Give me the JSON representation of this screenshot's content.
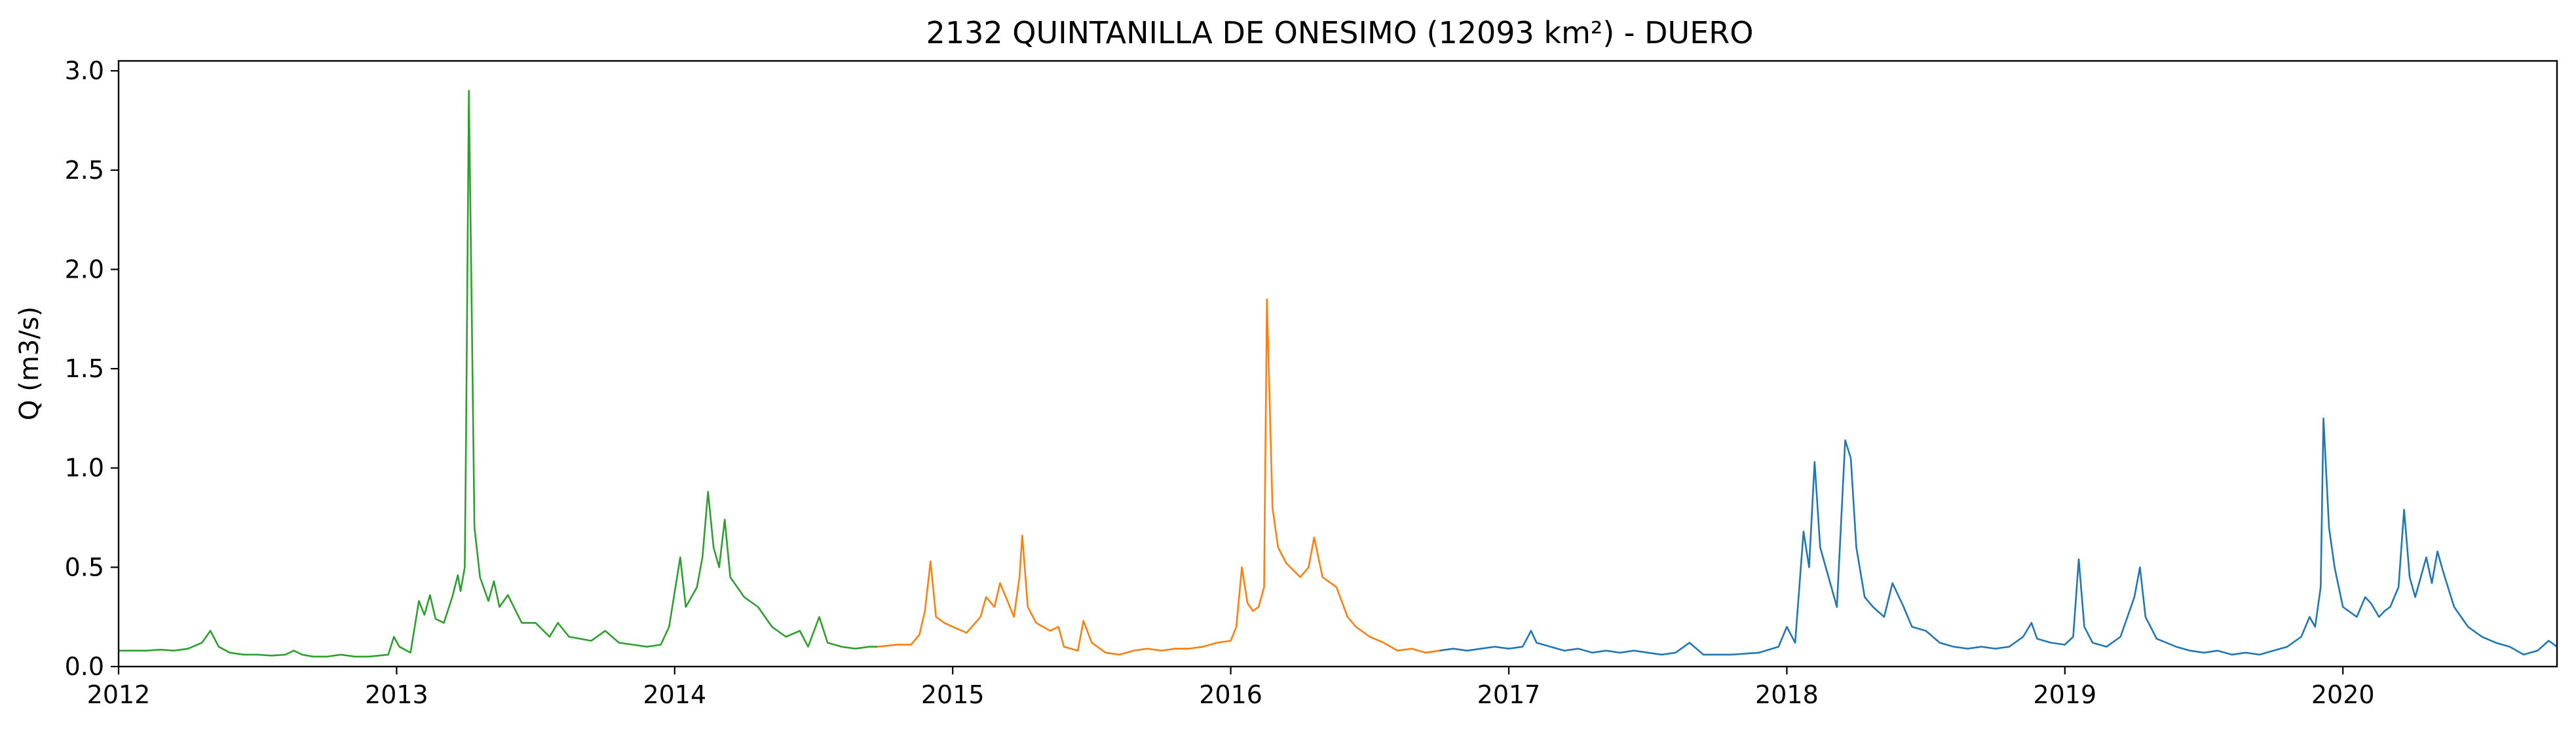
{
  "chart_data": {
    "type": "line",
    "title": "2132 QUINTANILLA DE ONESIMO (12093 km²) - DUERO",
    "xlabel": "",
    "ylabel": "Q (m3/s)",
    "xlim": [
      2012.0,
      2020.77
    ],
    "ylim": [
      0.0,
      3.05
    ],
    "x_ticks": [
      2012,
      2013,
      2014,
      2015,
      2016,
      2017,
      2018,
      2019,
      2020
    ],
    "x_tick_labels": [
      "2012",
      "2013",
      "2014",
      "2015",
      "2016",
      "2017",
      "2018",
      "2019",
      "2020"
    ],
    "y_ticks": [
      0.0,
      0.5,
      1.0,
      1.5,
      2.0,
      2.5,
      3.0
    ],
    "y_tick_labels": [
      "0.0",
      "0.5",
      "1.0",
      "1.5",
      "2.0",
      "2.5",
      "3.0"
    ],
    "grid": false,
    "legend": "none",
    "series": [
      {
        "color": "#2ca02c",
        "points": [
          [
            2012.0,
            0.08
          ],
          [
            2012.05,
            0.08
          ],
          [
            2012.1,
            0.08
          ],
          [
            2012.15,
            0.085
          ],
          [
            2012.2,
            0.08
          ],
          [
            2012.25,
            0.09
          ],
          [
            2012.3,
            0.12
          ],
          [
            2012.33,
            0.18
          ],
          [
            2012.36,
            0.1
          ],
          [
            2012.4,
            0.07
          ],
          [
            2012.45,
            0.06
          ],
          [
            2012.5,
            0.06
          ],
          [
            2012.55,
            0.055
          ],
          [
            2012.6,
            0.06
          ],
          [
            2012.63,
            0.08
          ],
          [
            2012.66,
            0.06
          ],
          [
            2012.7,
            0.05
          ],
          [
            2012.75,
            0.05
          ],
          [
            2012.8,
            0.06
          ],
          [
            2012.85,
            0.05
          ],
          [
            2012.9,
            0.05
          ],
          [
            2012.97,
            0.06
          ],
          [
            2012.99,
            0.15
          ],
          [
            2013.01,
            0.1
          ],
          [
            2013.05,
            0.07
          ],
          [
            2013.08,
            0.33
          ],
          [
            2013.1,
            0.26
          ],
          [
            2013.12,
            0.36
          ],
          [
            2013.14,
            0.24
          ],
          [
            2013.17,
            0.22
          ],
          [
            2013.2,
            0.35
          ],
          [
            2013.22,
            0.46
          ],
          [
            2013.23,
            0.38
          ],
          [
            2013.245,
            0.5
          ],
          [
            2013.25,
            1.2
          ],
          [
            2013.26,
            2.9
          ],
          [
            2013.27,
            1.8
          ],
          [
            2013.28,
            0.7
          ],
          [
            2013.3,
            0.45
          ],
          [
            2013.33,
            0.33
          ],
          [
            2013.35,
            0.43
          ],
          [
            2013.37,
            0.3
          ],
          [
            2013.4,
            0.36
          ],
          [
            2013.45,
            0.22
          ],
          [
            2013.5,
            0.22
          ],
          [
            2013.55,
            0.15
          ],
          [
            2013.58,
            0.22
          ],
          [
            2013.62,
            0.15
          ],
          [
            2013.7,
            0.13
          ],
          [
            2013.75,
            0.18
          ],
          [
            2013.8,
            0.12
          ],
          [
            2013.85,
            0.11
          ],
          [
            2013.9,
            0.1
          ],
          [
            2013.95,
            0.11
          ],
          [
            2013.98,
            0.2
          ],
          [
            2014.02,
            0.55
          ],
          [
            2014.04,
            0.3
          ],
          [
            2014.06,
            0.35
          ],
          [
            2014.08,
            0.4
          ],
          [
            2014.1,
            0.55
          ],
          [
            2014.12,
            0.88
          ],
          [
            2014.14,
            0.6
          ],
          [
            2014.16,
            0.5
          ],
          [
            2014.18,
            0.74
          ],
          [
            2014.2,
            0.45
          ],
          [
            2014.25,
            0.35
          ],
          [
            2014.3,
            0.3
          ],
          [
            2014.35,
            0.2
          ],
          [
            2014.4,
            0.15
          ],
          [
            2014.45,
            0.18
          ],
          [
            2014.48,
            0.1
          ],
          [
            2014.52,
            0.25
          ],
          [
            2014.55,
            0.12
          ],
          [
            2014.6,
            0.1
          ],
          [
            2014.65,
            0.09
          ],
          [
            2014.7,
            0.1
          ],
          [
            2014.73,
            0.1
          ]
        ]
      },
      {
        "color": "#ff7f0e",
        "points": [
          [
            2014.73,
            0.1
          ],
          [
            2014.8,
            0.11
          ],
          [
            2014.85,
            0.11
          ],
          [
            2014.88,
            0.16
          ],
          [
            2014.9,
            0.28
          ],
          [
            2014.92,
            0.53
          ],
          [
            2014.94,
            0.25
          ],
          [
            2014.97,
            0.22
          ],
          [
            2015.0,
            0.2
          ],
          [
            2015.05,
            0.17
          ],
          [
            2015.1,
            0.25
          ],
          [
            2015.12,
            0.35
          ],
          [
            2015.15,
            0.3
          ],
          [
            2015.17,
            0.42
          ],
          [
            2015.2,
            0.32
          ],
          [
            2015.22,
            0.25
          ],
          [
            2015.24,
            0.45
          ],
          [
            2015.25,
            0.66
          ],
          [
            2015.27,
            0.3
          ],
          [
            2015.3,
            0.22
          ],
          [
            2015.35,
            0.18
          ],
          [
            2015.38,
            0.2
          ],
          [
            2015.4,
            0.1
          ],
          [
            2015.45,
            0.08
          ],
          [
            2015.47,
            0.23
          ],
          [
            2015.5,
            0.12
          ],
          [
            2015.55,
            0.07
          ],
          [
            2015.6,
            0.06
          ],
          [
            2015.65,
            0.08
          ],
          [
            2015.7,
            0.09
          ],
          [
            2015.75,
            0.08
          ],
          [
            2015.8,
            0.09
          ],
          [
            2015.85,
            0.09
          ],
          [
            2015.9,
            0.1
          ],
          [
            2015.95,
            0.12
          ],
          [
            2016.0,
            0.13
          ],
          [
            2016.02,
            0.2
          ],
          [
            2016.04,
            0.5
          ],
          [
            2016.06,
            0.32
          ],
          [
            2016.08,
            0.28
          ],
          [
            2016.1,
            0.3
          ],
          [
            2016.12,
            0.4
          ],
          [
            2016.13,
            1.85
          ],
          [
            2016.15,
            0.8
          ],
          [
            2016.17,
            0.6
          ],
          [
            2016.2,
            0.52
          ],
          [
            2016.25,
            0.45
          ],
          [
            2016.28,
            0.5
          ],
          [
            2016.3,
            0.65
          ],
          [
            2016.33,
            0.45
          ],
          [
            2016.38,
            0.4
          ],
          [
            2016.42,
            0.25
          ],
          [
            2016.45,
            0.2
          ],
          [
            2016.5,
            0.15
          ],
          [
            2016.55,
            0.12
          ],
          [
            2016.6,
            0.08
          ],
          [
            2016.65,
            0.09
          ],
          [
            2016.7,
            0.07
          ],
          [
            2016.75,
            0.08
          ]
        ]
      },
      {
        "color": "#1f77b4",
        "points": [
          [
            2016.75,
            0.08
          ],
          [
            2016.8,
            0.09
          ],
          [
            2016.85,
            0.08
          ],
          [
            2016.9,
            0.09
          ],
          [
            2016.95,
            0.1
          ],
          [
            2017.0,
            0.09
          ],
          [
            2017.05,
            0.1
          ],
          [
            2017.08,
            0.18
          ],
          [
            2017.1,
            0.12
          ],
          [
            2017.15,
            0.1
          ],
          [
            2017.2,
            0.08
          ],
          [
            2017.25,
            0.09
          ],
          [
            2017.3,
            0.07
          ],
          [
            2017.35,
            0.08
          ],
          [
            2017.4,
            0.07
          ],
          [
            2017.45,
            0.08
          ],
          [
            2017.5,
            0.07
          ],
          [
            2017.55,
            0.06
          ],
          [
            2017.6,
            0.07
          ],
          [
            2017.65,
            0.12
          ],
          [
            2017.7,
            0.06
          ],
          [
            2017.8,
            0.06
          ],
          [
            2017.9,
            0.07
          ],
          [
            2017.97,
            0.1
          ],
          [
            2018.0,
            0.2
          ],
          [
            2018.03,
            0.12
          ],
          [
            2018.06,
            0.68
          ],
          [
            2018.08,
            0.5
          ],
          [
            2018.1,
            1.03
          ],
          [
            2018.12,
            0.6
          ],
          [
            2018.15,
            0.45
          ],
          [
            2018.18,
            0.3
          ],
          [
            2018.21,
            1.14
          ],
          [
            2018.23,
            1.05
          ],
          [
            2018.25,
            0.6
          ],
          [
            2018.28,
            0.35
          ],
          [
            2018.31,
            0.3
          ],
          [
            2018.35,
            0.25
          ],
          [
            2018.38,
            0.42
          ],
          [
            2018.42,
            0.3
          ],
          [
            2018.45,
            0.2
          ],
          [
            2018.5,
            0.18
          ],
          [
            2018.55,
            0.12
          ],
          [
            2018.6,
            0.1
          ],
          [
            2018.65,
            0.09
          ],
          [
            2018.7,
            0.1
          ],
          [
            2018.75,
            0.09
          ],
          [
            2018.8,
            0.1
          ],
          [
            2018.85,
            0.15
          ],
          [
            2018.88,
            0.22
          ],
          [
            2018.9,
            0.14
          ],
          [
            2018.95,
            0.12
          ],
          [
            2019.0,
            0.11
          ],
          [
            2019.03,
            0.15
          ],
          [
            2019.05,
            0.54
          ],
          [
            2019.07,
            0.2
          ],
          [
            2019.1,
            0.12
          ],
          [
            2019.15,
            0.1
          ],
          [
            2019.2,
            0.15
          ],
          [
            2019.25,
            0.35
          ],
          [
            2019.27,
            0.5
          ],
          [
            2019.29,
            0.25
          ],
          [
            2019.33,
            0.14
          ],
          [
            2019.4,
            0.1
          ],
          [
            2019.45,
            0.08
          ],
          [
            2019.5,
            0.07
          ],
          [
            2019.55,
            0.08
          ],
          [
            2019.6,
            0.06
          ],
          [
            2019.65,
            0.07
          ],
          [
            2019.7,
            0.06
          ],
          [
            2019.75,
            0.08
          ],
          [
            2019.8,
            0.1
          ],
          [
            2019.85,
            0.15
          ],
          [
            2019.88,
            0.25
          ],
          [
            2019.9,
            0.2
          ],
          [
            2019.92,
            0.4
          ],
          [
            2019.93,
            1.25
          ],
          [
            2019.95,
            0.7
          ],
          [
            2019.97,
            0.5
          ],
          [
            2020.0,
            0.3
          ],
          [
            2020.05,
            0.25
          ],
          [
            2020.08,
            0.35
          ],
          [
            2020.1,
            0.32
          ],
          [
            2020.13,
            0.25
          ],
          [
            2020.15,
            0.28
          ],
          [
            2020.17,
            0.3
          ],
          [
            2020.2,
            0.4
          ],
          [
            2020.22,
            0.79
          ],
          [
            2020.24,
            0.45
          ],
          [
            2020.26,
            0.35
          ],
          [
            2020.28,
            0.45
          ],
          [
            2020.3,
            0.55
          ],
          [
            2020.32,
            0.42
          ],
          [
            2020.34,
            0.58
          ],
          [
            2020.36,
            0.48
          ],
          [
            2020.4,
            0.3
          ],
          [
            2020.45,
            0.2
          ],
          [
            2020.5,
            0.15
          ],
          [
            2020.55,
            0.12
          ],
          [
            2020.6,
            0.1
          ],
          [
            2020.65,
            0.06
          ],
          [
            2020.7,
            0.08
          ],
          [
            2020.74,
            0.13
          ],
          [
            2020.77,
            0.1
          ]
        ]
      }
    ]
  }
}
